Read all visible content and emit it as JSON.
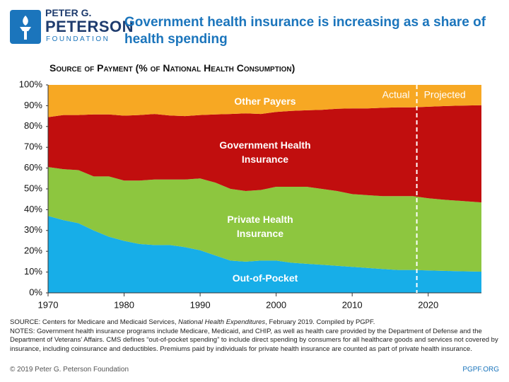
{
  "header": {
    "logo": [
      "PETER G.",
      "PETERSON",
      "FOUNDATION"
    ],
    "title": "Government health insurance is increasing as a share of health spending"
  },
  "chart_data": {
    "type": "stacked-area",
    "subtitle": "Source of Payment (% of National Health Consumption)",
    "x": [
      1970,
      1972,
      1974,
      1976,
      1978,
      1980,
      1982,
      1984,
      1986,
      1988,
      1990,
      1992,
      1994,
      1996,
      1998,
      2000,
      2002,
      2004,
      2006,
      2008,
      2010,
      2012,
      2014,
      2016,
      2018,
      2020,
      2022,
      2024,
      2027
    ],
    "series": [
      {
        "name": "Out-of-Pocket",
        "color": "#17aee8",
        "values": [
          37,
          35,
          33.5,
          30,
          27,
          25,
          23.5,
          23,
          23,
          22,
          20.5,
          18,
          15.5,
          15,
          15.5,
          15.5,
          14.5,
          14,
          13.5,
          13,
          12.5,
          12,
          11.5,
          11,
          11,
          10.8,
          10.6,
          10.4,
          10.2
        ]
      },
      {
        "name": "Private Health Insurance",
        "color": "#8dc63f",
        "values": [
          23.5,
          24.5,
          25.5,
          26,
          29,
          29,
          30.5,
          31.5,
          31.5,
          32.5,
          34.5,
          35,
          34.5,
          34,
          34,
          35.5,
          36.5,
          37,
          36.5,
          36,
          35,
          35,
          35,
          35.5,
          35.5,
          34.7,
          34.2,
          33.9,
          33.3
        ]
      },
      {
        "name": "Government Health Insurance",
        "color": "#c10e0e",
        "values": [
          24,
          26,
          26.5,
          29.8,
          29.8,
          31.2,
          31.5,
          31.5,
          30.8,
          30.5,
          30.5,
          32.8,
          36,
          37.3,
          36.5,
          36,
          36.5,
          36.8,
          38,
          39.5,
          41.2,
          41.7,
          42.5,
          42.7,
          42.7,
          44,
          45,
          45.7,
          46.7
        ]
      },
      {
        "name": "Other Payers",
        "color": "#f7a823",
        "values": [
          15.5,
          14.5,
          14.5,
          14.2,
          14.2,
          14.8,
          14.5,
          14,
          14.7,
          15,
          14.5,
          14.2,
          14,
          13.7,
          14,
          13,
          12.5,
          12.2,
          12,
          11.5,
          11.3,
          11.3,
          11,
          10.8,
          10.8,
          10.5,
          10.2,
          10,
          9.8
        ]
      }
    ],
    "xlim": [
      1970,
      2027
    ],
    "xticks": [
      1970,
      1980,
      1990,
      2000,
      2010,
      2020
    ],
    "ylim": [
      0,
      100
    ],
    "yticks": [
      {
        "value": 0,
        "label": "0%"
      },
      {
        "value": 10,
        "label": "10%"
      },
      {
        "value": 20,
        "label": "20%"
      },
      {
        "value": 30,
        "label": "30%"
      },
      {
        "value": 40,
        "label": "40%"
      },
      {
        "value": 50,
        "label": "50%"
      },
      {
        "value": 60,
        "label": "60%"
      },
      {
        "value": 70,
        "label": "70%"
      },
      {
        "value": 80,
        "label": "80%"
      },
      {
        "value": 90,
        "label": "90%"
      },
      {
        "value": 100,
        "label": "100%"
      }
    ],
    "grid": false,
    "divider": {
      "x": 2018.5,
      "left_label": "Actual",
      "right_label": "Projected"
    }
  },
  "notes": {
    "source": [
      "SOURCE: Centers for Medicare and Medicaid Services, ",
      "National Health Expenditures",
      ", February 2019. Compiled by PGPF."
    ],
    "text": "NOTES: Government health insurance programs include Medicare, Medicaid, and CHIP, as well as health care provided by the Department of Defense and the Department of Veterans’ Affairs. CMS defines “out-of-pocket spending” to include direct spending by consumers for all healthcare goods and services not covered by insurance, including coinsurance and deductibles. Premiums paid by individuals for private health insurance are counted as part of private health insurance."
  },
  "footer": {
    "copyright": "© 2019 Peter G. Peterson Foundation",
    "site": "PGPF.ORG"
  }
}
